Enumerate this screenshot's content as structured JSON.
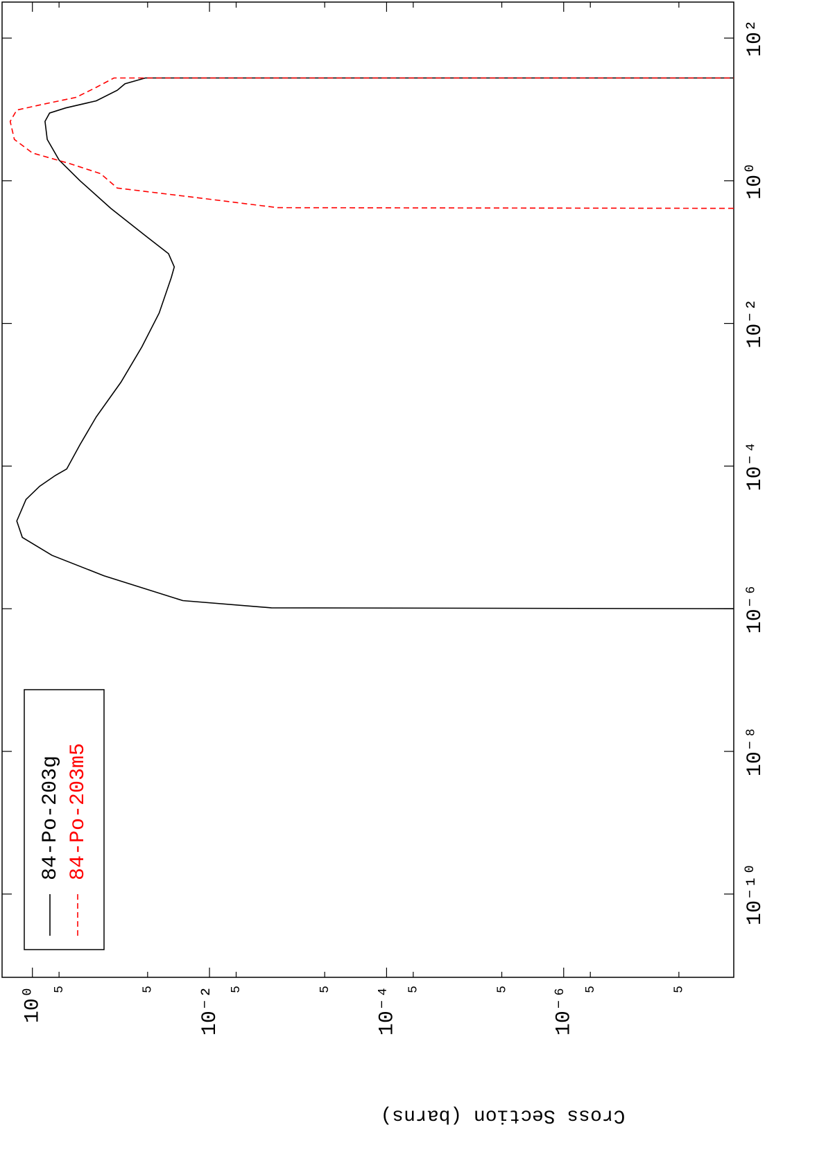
{
  "chart_data": {
    "type": "line",
    "y_label": "Cross Section (barns)",
    "log_x": true,
    "log_y": true,
    "xlim": [
      6.8e-12,
      320
    ],
    "ylim": [
      1.2e-08,
      2.2
    ],
    "xticks": [
      {
        "value": 1e-10,
        "label": "10⁻¹⁰"
      },
      {
        "value": 1e-08,
        "label": "10⁻⁸"
      },
      {
        "value": 1e-06,
        "label": "10⁻⁶"
      },
      {
        "value": 0.0001,
        "label": "10⁻⁴"
      },
      {
        "value": 0.01,
        "label": "10⁻²"
      },
      {
        "value": 1,
        "label": "10⁰"
      },
      {
        "value": 100,
        "label": "10²"
      }
    ],
    "yticks": [
      {
        "value": 1,
        "label": "10⁰"
      },
      {
        "value": 0.5,
        "label": "5"
      },
      {
        "value": 0.05,
        "label": "5"
      },
      {
        "value": 0.01,
        "label": "10⁻²"
      },
      {
        "value": 0.005,
        "label": "5"
      },
      {
        "value": 0.0005,
        "label": "5"
      },
      {
        "value": 0.0001,
        "label": "10⁻⁴"
      },
      {
        "value": 5e-05,
        "label": "5"
      },
      {
        "value": 5e-06,
        "label": "5"
      },
      {
        "value": 1e-06,
        "label": "10⁻⁶"
      },
      {
        "value": 5e-07,
        "label": "5"
      },
      {
        "value": 5e-08,
        "label": "5"
      }
    ],
    "legend": "upper-left",
    "series": [
      {
        "name": "84-Po-203g",
        "color": "#000000",
        "dash": false,
        "x": [
          1e-06,
          1.03e-06,
          1.3e-06,
          2.9e-06,
          5.6e-06,
          1e-05,
          1.7e-05,
          3.4e-05,
          5.2e-05,
          7.4e-05,
          9.1e-05,
          0.0002,
          0.00049,
          0.0015,
          0.0047,
          0.014,
          0.044,
          0.062,
          0.095,
          0.17,
          0.41,
          1.0,
          1.95,
          3.8,
          6.8,
          8.9,
          10.5,
          13.2,
          18.6,
          22.9,
          27.6,
          27.6
        ],
        "values": [
          1.2e-08,
          0.002,
          0.02,
          0.156,
          0.6,
          1.3,
          1.5,
          1.18,
          0.83,
          0.55,
          0.41,
          0.29,
          0.19,
          0.1,
          0.058,
          0.037,
          0.027,
          0.025,
          0.029,
          0.053,
          0.13,
          0.29,
          0.5,
          0.68,
          0.72,
          0.64,
          0.42,
          0.19,
          0.11,
          0.09,
          0.053,
          1.2e-08
        ]
      },
      {
        "name": "84-Po-203m5",
        "color": "#ff0000",
        "dash": true,
        "x": [
          0.41,
          0.42,
          0.58,
          0.79,
          1.26,
          1.74,
          2.45,
          3.8,
          6.8,
          9.8,
          11.7,
          14.8,
          20.4,
          27.6,
          27.6
        ],
        "values": [
          1.2e-08,
          0.0017,
          0.014,
          0.11,
          0.17,
          0.38,
          1.0,
          1.6,
          1.78,
          1.5,
          0.79,
          0.32,
          0.19,
          0.12,
          1.2e-08
        ]
      }
    ]
  }
}
